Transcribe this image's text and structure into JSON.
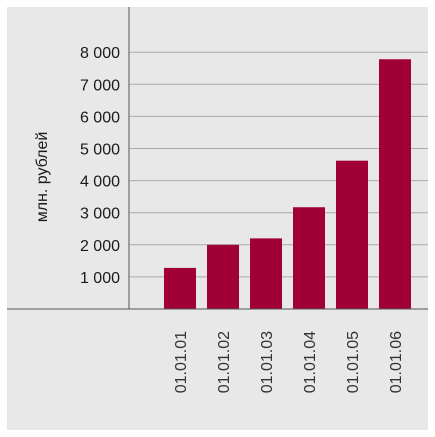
{
  "chart_data": {
    "type": "bar",
    "ylabel": "млн. рублей",
    "categories": [
      "01.01.01",
      "01.01.02",
      "01.01.03",
      "01.01.04",
      "01.01.05",
      "01.01.06"
    ],
    "values": [
      1280,
      2000,
      2200,
      3170,
      4620,
      7780
    ],
    "yticks": [
      1000,
      2000,
      3000,
      4000,
      5000,
      6000,
      7000,
      8000
    ],
    "ytick_labels": [
      "1 000",
      "2 000",
      "3 000",
      "4 000",
      "5 000",
      "6 000",
      "7 000",
      "8 000"
    ],
    "ylim": [
      0,
      8000
    ],
    "grid": true,
    "legend": "none",
    "colors": {
      "bar": "#a10036",
      "background": "#e8e8e8",
      "grid": "#ababab",
      "axis": "#555555"
    }
  }
}
